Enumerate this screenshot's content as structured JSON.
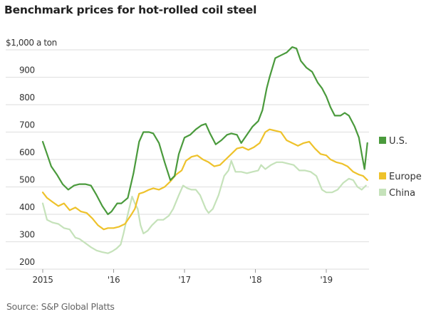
{
  "title": "Benchmark prices for hot-rolled coil steel",
  "source": "Source: S&P Global Platts",
  "colors": {
    "us": "#4a9a3c",
    "europe": "#eec22b",
    "china": "#c5e2ba",
    "grid": "#e3e3e3",
    "text": "#333333"
  },
  "chart_data": {
    "type": "line",
    "title": "Benchmark prices for hot-rolled coil steel",
    "xlabel": "",
    "ylabel": "$1,000 a ton",
    "ylim": [
      200,
      1000
    ],
    "xlim": [
      2015.0,
      2019.6
    ],
    "grid": true,
    "legend_position": "right",
    "y_ticks": [
      {
        "value": 1000,
        "label": "$1,000 a ton"
      },
      {
        "value": 900,
        "label": "900"
      },
      {
        "value": 800,
        "label": "800"
      },
      {
        "value": 700,
        "label": "700"
      },
      {
        "value": 600,
        "label": "600"
      },
      {
        "value": 500,
        "label": "500"
      },
      {
        "value": 400,
        "label": "400"
      },
      {
        "value": 300,
        "label": "300"
      },
      {
        "value": 200,
        "label": "200"
      }
    ],
    "x_ticks": [
      {
        "value": 2015,
        "label": "2015"
      },
      {
        "value": 2016,
        "label": "'16"
      },
      {
        "value": 2017,
        "label": "'17"
      },
      {
        "value": 2018,
        "label": "'18"
      },
      {
        "value": 2019,
        "label": "'19"
      }
    ],
    "series": [
      {
        "name": "U.S.",
        "key": "us",
        "x": [
          2015.0,
          2015.06,
          2015.12,
          2015.2,
          2015.28,
          2015.36,
          2015.44,
          2015.52,
          2015.6,
          2015.68,
          2015.76,
          2015.84,
          2015.92,
          2015.97,
          2016.05,
          2016.11,
          2016.2,
          2016.28,
          2016.36,
          2016.42,
          2016.5,
          2016.56,
          2016.64,
          2016.72,
          2016.8,
          2016.86,
          2016.92,
          2017.0,
          2017.08,
          2017.16,
          2017.24,
          2017.3,
          2017.36,
          2017.44,
          2017.52,
          2017.6,
          2017.66,
          2017.74,
          2017.8,
          2017.88,
          2017.96,
          2018.04,
          2018.1,
          2018.16,
          2018.2,
          2018.28,
          2018.36,
          2018.44,
          2018.52,
          2018.58,
          2018.64,
          2018.72,
          2018.8,
          2018.88,
          2018.94,
          2019.0,
          2019.06,
          2019.12,
          2019.2,
          2019.26,
          2019.32,
          2019.4,
          2019.46,
          2019.5,
          2019.54,
          2019.58
        ],
        "values": [
          665,
          620,
          575,
          545,
          510,
          490,
          505,
          510,
          510,
          505,
          470,
          430,
          400,
          410,
          440,
          440,
          460,
          550,
          665,
          700,
          700,
          695,
          660,
          590,
          525,
          540,
          620,
          680,
          690,
          710,
          725,
          730,
          695,
          655,
          670,
          690,
          695,
          690,
          660,
          690,
          720,
          740,
          780,
          860,
          900,
          970,
          980,
          990,
          1010,
          1005,
          960,
          935,
          920,
          880,
          860,
          830,
          790,
          760,
          760,
          770,
          760,
          720,
          680,
          620,
          565,
          660
        ]
      },
      {
        "name": "Europe",
        "key": "europe",
        "x": [
          2015.0,
          2015.06,
          2015.14,
          2015.22,
          2015.3,
          2015.38,
          2015.46,
          2015.54,
          2015.62,
          2015.7,
          2015.78,
          2015.86,
          2015.92,
          2016.0,
          2016.08,
          2016.16,
          2016.24,
          2016.3,
          2016.36,
          2016.42,
          2016.5,
          2016.56,
          2016.64,
          2016.72,
          2016.8,
          2016.88,
          2016.96,
          2017.02,
          2017.1,
          2017.18,
          2017.26,
          2017.34,
          2017.42,
          2017.5,
          2017.58,
          2017.66,
          2017.74,
          2017.82,
          2017.9,
          2017.98,
          2018.06,
          2018.14,
          2018.2,
          2018.28,
          2018.36,
          2018.44,
          2018.52,
          2018.6,
          2018.68,
          2018.76,
          2018.84,
          2018.92,
          2019.0,
          2019.06,
          2019.14,
          2019.22,
          2019.3,
          2019.38,
          2019.46,
          2019.52,
          2019.58
        ],
        "values": [
          480,
          460,
          445,
          430,
          440,
          415,
          425,
          410,
          405,
          385,
          360,
          345,
          350,
          350,
          355,
          365,
          395,
          420,
          475,
          480,
          490,
          495,
          490,
          500,
          520,
          545,
          560,
          595,
          610,
          615,
          600,
          590,
          575,
          580,
          600,
          620,
          640,
          645,
          635,
          645,
          660,
          700,
          710,
          705,
          700,
          670,
          660,
          650,
          660,
          665,
          640,
          620,
          615,
          600,
          590,
          585,
          575,
          555,
          545,
          540,
          525
        ]
      },
      {
        "name": "China",
        "key": "china",
        "x": [
          2015.0,
          2015.06,
          2015.14,
          2015.22,
          2015.3,
          2015.38,
          2015.46,
          2015.52,
          2015.6,
          2015.68,
          2015.76,
          2015.84,
          2015.92,
          2015.98,
          2016.04,
          2016.1,
          2016.14,
          2016.2,
          2016.26,
          2016.3,
          2016.34,
          2016.38,
          2016.42,
          2016.48,
          2016.54,
          2016.62,
          2016.7,
          2016.78,
          2016.84,
          2016.92,
          2016.98,
          2017.04,
          2017.1,
          2017.16,
          2017.22,
          2017.3,
          2017.34,
          2017.4,
          2017.48,
          2017.56,
          2017.62,
          2017.66,
          2017.72,
          2017.8,
          2017.88,
          2017.96,
          2018.04,
          2018.08,
          2018.14,
          2018.22,
          2018.3,
          2018.38,
          2018.46,
          2018.54,
          2018.62,
          2018.7,
          2018.78,
          2018.86,
          2018.94,
          2019.0,
          2019.08,
          2019.16,
          2019.24,
          2019.32,
          2019.38,
          2019.44,
          2019.5,
          2019.56
        ],
        "values": [
          440,
          380,
          370,
          365,
          350,
          345,
          315,
          310,
          295,
          280,
          268,
          262,
          258,
          265,
          275,
          290,
          330,
          400,
          465,
          440,
          420,
          360,
          330,
          340,
          360,
          380,
          380,
          395,
          420,
          470,
          505,
          495,
          490,
          490,
          470,
          420,
          405,
          420,
          470,
          540,
          560,
          595,
          555,
          555,
          550,
          555,
          560,
          580,
          565,
          580,
          590,
          590,
          585,
          580,
          560,
          560,
          555,
          540,
          490,
          480,
          480,
          490,
          515,
          530,
          525,
          500,
          490,
          505
        ]
      }
    ],
    "legend": [
      {
        "key": "us",
        "label": "U.S."
      },
      {
        "key": "europe",
        "label": "Europe"
      },
      {
        "key": "china",
        "label": "China"
      }
    ]
  }
}
